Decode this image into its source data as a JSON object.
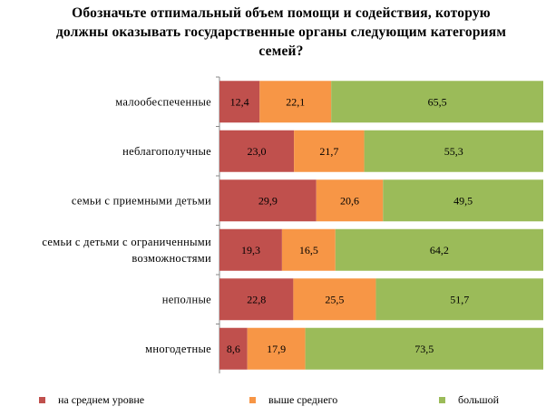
{
  "chart_data": {
    "type": "bar",
    "orientation": "horizontal",
    "stacked": true,
    "title": "Обозначьте отпимальный объем помощи и содействия, которую должны оказывать государственные органы следующим категориям семей?",
    "categories": [
      "малообеспеченные",
      "неблагополучные",
      "семьи с приемными детьми",
      "семьи с детьми с ограниченными возможностями",
      "неполные",
      "многодетные"
    ],
    "category_lines": [
      [
        "малообеспеченные"
      ],
      [
        "неблагополучные"
      ],
      [
        "семьи с приемными детьми"
      ],
      [
        "семьи с детьми с ограниченными",
        "возможностями"
      ],
      [
        "неполные"
      ],
      [
        "многодетные"
      ]
    ],
    "series": [
      {
        "name": "на среднем уровне",
        "color": "#c0504d",
        "values": [
          12.4,
          23.0,
          29.9,
          19.3,
          22.8,
          8.6
        ],
        "labels": [
          "12,4",
          "23,0",
          "29,9",
          "19,3",
          "22,8",
          "8,6"
        ]
      },
      {
        "name": "выше среднего",
        "color": "#f79646",
        "values": [
          22.1,
          21.7,
          20.6,
          16.5,
          25.5,
          17.9
        ],
        "labels": [
          "22,1",
          "21,7",
          "20,6",
          "16,5",
          "25,5",
          "17,9"
        ]
      },
      {
        "name": "большой",
        "color": "#9bbb59",
        "values": [
          65.5,
          55.3,
          49.5,
          64.2,
          51.7,
          73.5
        ],
        "labels": [
          "65,5",
          "55,3",
          "49,5",
          "64,2",
          "51,7",
          "73,5"
        ]
      }
    ],
    "xlim": [
      0,
      100
    ],
    "grid": false,
    "legend": "bottom"
  }
}
